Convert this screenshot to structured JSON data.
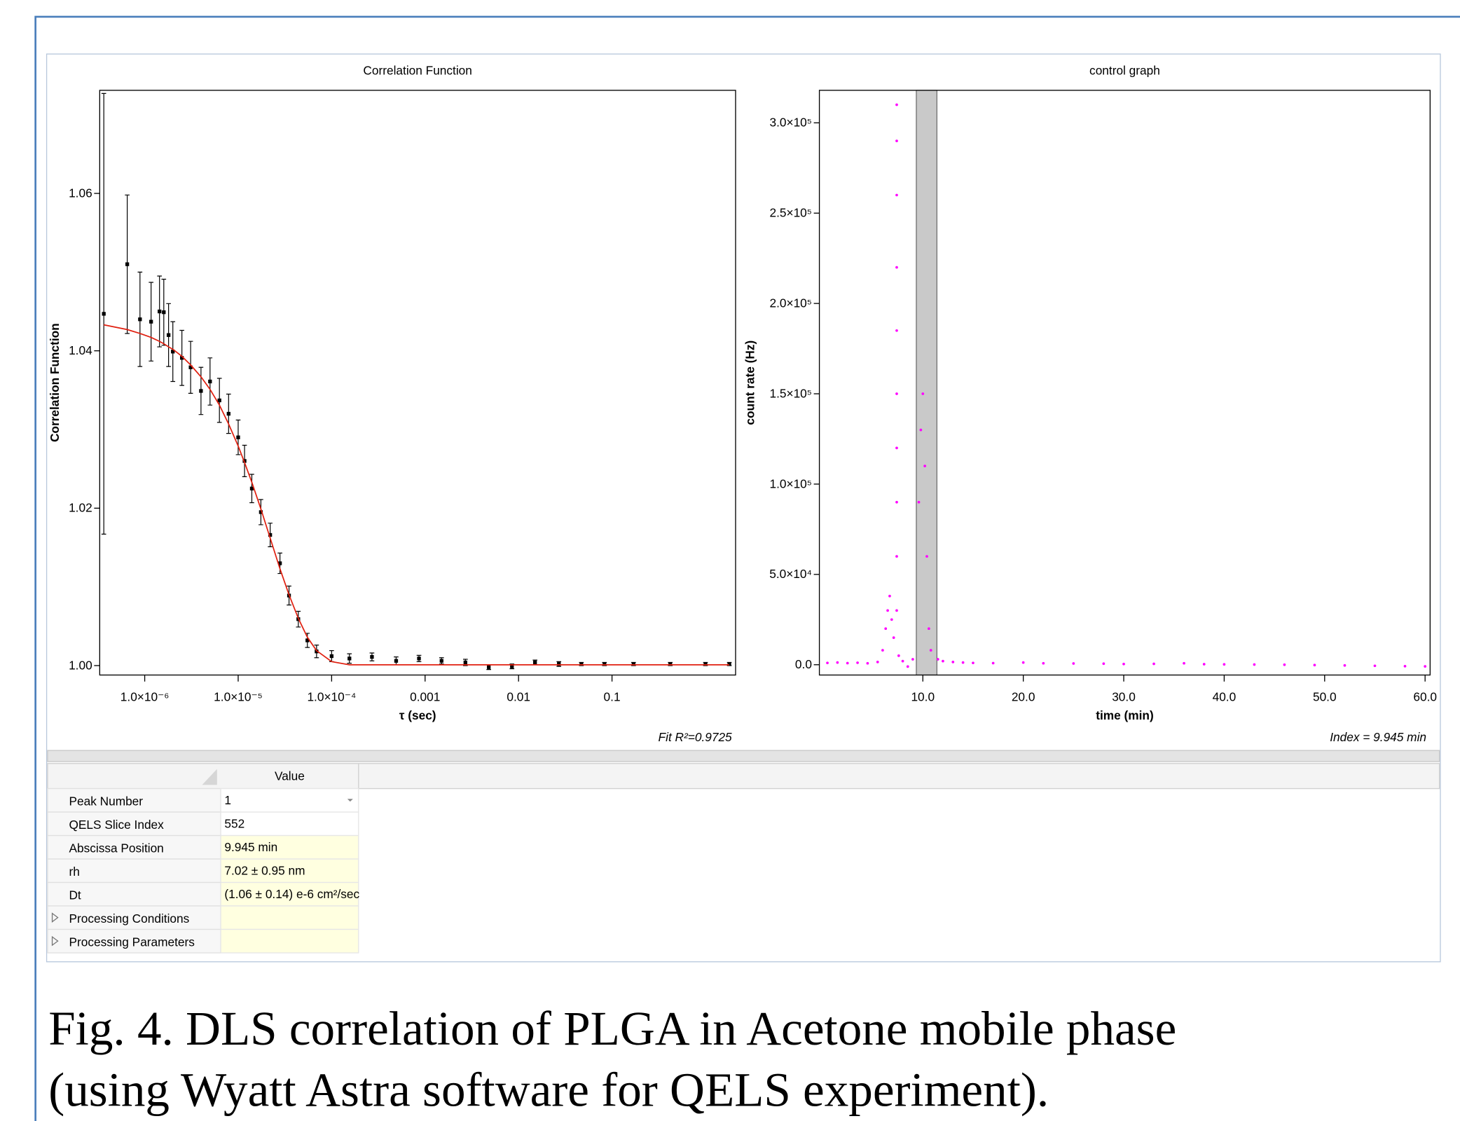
{
  "chart_data": [
    {
      "type": "scatter",
      "title": "Correlation Function",
      "x_label": "τ (sec)",
      "y_label": "Correlation Function",
      "annotation": "Fit R²=0.9725",
      "xscale": "log",
      "xlim": [
        3.3e-07,
        2.1
      ],
      "ylim": [
        0.9988,
        1.0731
      ],
      "xticks": [
        {
          "value": 1e-06,
          "label": "1.0×10⁻⁶"
        },
        {
          "value": 1e-05,
          "label": "1.0×10⁻⁵"
        },
        {
          "value": 0.0001,
          "label": "1.0×10⁻⁴"
        },
        0.001,
        0.01,
        0.1
      ],
      "yticks": [
        {
          "value": 1,
          "label": "1.00"
        },
        1.02,
        1.04,
        1.06
      ],
      "x": [
        3.65e-07,
        6.5e-07,
        8.9e-07,
        1.17e-06,
        1.44e-06,
        1.6e-06,
        1.8e-06,
        2e-06,
        2.5e-06,
        3.1e-06,
        4e-06,
        5e-06,
        6.3e-06,
        7.9e-06,
        1e-05,
        1.17e-05,
        1.4e-05,
        1.75e-05,
        2.2e-05,
        2.8e-05,
        3.5e-05,
        4.4e-05,
        5.5e-05,
        6.9e-05,
        0.0001,
        0.000155,
        0.00027,
        0.00049,
        0.00086,
        0.0015,
        0.0027,
        0.0048,
        0.0085,
        0.015,
        0.027,
        0.047,
        0.083,
        0.17,
        0.42,
        1.0,
        1.8
      ],
      "series": [
        {
          "color": "#000000",
          "marker": "square",
          "values": [
            1.0447,
            1.051,
            1.044,
            1.0437,
            1.045,
            1.0449,
            1.042,
            1.0399,
            1.0391,
            1.0379,
            1.0349,
            1.0361,
            1.0337,
            1.032,
            1.029,
            1.026,
            1.0225,
            1.0195,
            1.0166,
            1.013,
            1.0089,
            1.0059,
            1.0032,
            1.0018,
            1.0012,
            1.0009,
            1.0011,
            1.0006,
            1.0009,
            1.0006,
            1.0004,
            0.9998,
            0.9999,
            1.0004,
            1.0002,
            1.0002,
            1.0002,
            1.0002,
            1.0002,
            1.0002,
            1.0002
          ],
          "errors": [
            0.028,
            0.0088,
            0.006,
            0.005,
            0.0045,
            0.0042,
            0.004,
            0.0038,
            0.0035,
            0.0033,
            0.003,
            0.003,
            0.0028,
            0.0025,
            0.0022,
            0.002,
            0.0018,
            0.0016,
            0.0015,
            0.0013,
            0.0012,
            0.001,
            0.0009,
            0.0008,
            0.0007,
            0.0006,
            0.0005,
            0.0005,
            0.0004,
            0.0004,
            0.0004,
            0.0003,
            0.0003,
            0.0003,
            0.0003,
            0.0002,
            0.0002,
            0.0002,
            0.0002,
            0.0002,
            0.0002
          ]
        },
        {
          "color": "#e02010",
          "mode": "line",
          "values": [
            1.0433,
            1.0427,
            1.0422,
            1.0417,
            1.0412,
            1.0409,
            1.0405,
            1.0402,
            1.0393,
            1.0382,
            1.0367,
            1.0351,
            1.0331,
            1.0307,
            1.0279,
            1.0258,
            1.0233,
            1.0199,
            1.0162,
            1.0123,
            1.009,
            1.006,
            1.0036,
            1.0019,
            1.0005,
            1.0001,
            1.0001,
            1.0001,
            1.0001,
            1.0001,
            1.0001,
            1.0001,
            1.0001,
            1.0001,
            1.0001,
            1.0001,
            1.0001,
            1.0001,
            1.0001,
            1.0001,
            1.0001
          ]
        }
      ]
    },
    {
      "type": "scatter",
      "title": "control graph",
      "x_label": "time (min)",
      "y_label": "count rate (Hz)",
      "annotation": "Index = 9.945 min",
      "xlim": [
        -0.3,
        60.5
      ],
      "ylim": [
        -5700,
        318000
      ],
      "selection": [
        9.35,
        11.4
      ],
      "xticks": [
        {
          "value": 10,
          "label": "10.0"
        },
        {
          "value": 20,
          "label": "20.0"
        },
        {
          "value": 30,
          "label": "30.0"
        },
        {
          "value": 40,
          "label": "40.0"
        },
        {
          "value": 50,
          "label": "50.0"
        },
        {
          "value": 60,
          "label": "60.0"
        }
      ],
      "yticks": [
        {
          "value": 0,
          "label": "0.0"
        },
        {
          "value": 50000,
          "label": "5.0×10⁴"
        },
        {
          "value": 100000,
          "label": "1.0×10⁵"
        },
        {
          "value": 150000,
          "label": "1.5×10⁵"
        },
        {
          "value": 200000,
          "label": "2.0×10⁵"
        },
        {
          "value": 250000,
          "label": "2.5×10⁵"
        },
        {
          "value": 300000,
          "label": "3.0×10⁵"
        }
      ],
      "x": [
        0.5,
        1.5,
        2.5,
        3.5,
        4.5,
        5.5,
        6.0,
        6.3,
        6.5,
        6.7,
        6.9,
        7.1,
        7.4,
        7.4,
        7.4,
        7.4,
        7.4,
        7.4,
        7.4,
        7.4,
        7.4,
        7.4,
        7.6,
        8.0,
        8.5,
        9.0,
        9.6,
        9.8,
        10.0,
        10.2,
        10.4,
        10.6,
        10.8,
        11.5,
        12,
        13,
        14,
        15,
        17,
        20,
        22,
        25,
        28,
        30,
        33,
        36,
        38,
        40,
        43,
        46,
        49,
        52,
        55,
        58,
        60
      ],
      "series": [
        {
          "color": "#ff00ff",
          "values": [
            1000,
            1200,
            900,
            1100,
            800,
            1500,
            8000,
            20000,
            30000,
            38000,
            25000,
            15000,
            310000,
            290000,
            260000,
            220000,
            185000,
            150000,
            120000,
            90000,
            60000,
            30000,
            5000,
            2000,
            -1000,
            3000,
            90000,
            130000,
            150000,
            110000,
            60000,
            20000,
            8000,
            3000,
            2000,
            1500,
            1200,
            1000,
            900,
            1200,
            800,
            700,
            600,
            400,
            500,
            800,
            300,
            200,
            100,
            0,
            -200,
            -400,
            -600,
            -800,
            -900
          ]
        }
      ]
    }
  ],
  "table": {
    "header": [
      "Value"
    ],
    "rows": [
      [
        "Peak Number",
        "1"
      ],
      [
        "QELS Slice Index",
        "552"
      ],
      [
        "Abscissa Position",
        "9.945 min"
      ],
      [
        "rh",
        "7.02 ± 0.95 nm"
      ],
      [
        "Dt",
        "(1.06 ± 0.14) e-6 cm²/sec"
      ],
      [
        "Processing Conditions"
      ],
      [
        "Processing Parameters"
      ]
    ]
  },
  "caption": [
    "Fig. 4. DLS correlation of PLGA in Acetone mobile phase",
    "(using Wyatt Astra software for QELS experiment)."
  ]
}
